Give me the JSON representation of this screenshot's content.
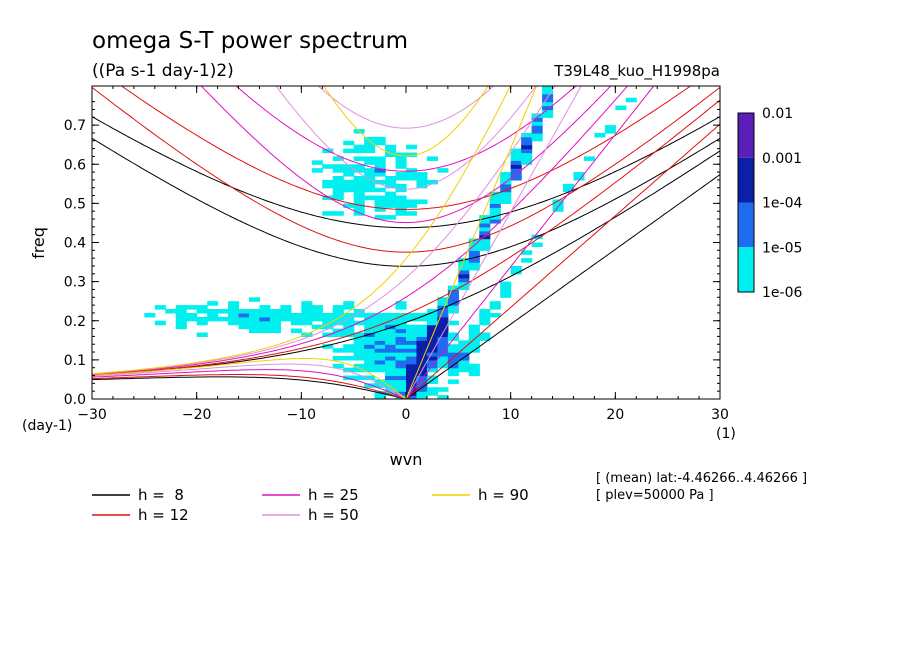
{
  "chart_data": {
    "type": "heatmap",
    "title": "omega S-T power spectrum",
    "subtitle": "((Pa s-1 day-1)2)",
    "run_label": "T39L48_kuo_H1998pa",
    "xlabel": "wvn",
    "ylabel": "freq",
    "x_unit": "(1)",
    "y_unit": "(day-1)",
    "xlim": [
      -30,
      30
    ],
    "ylim": [
      0,
      0.8
    ],
    "x_ticks": [
      -30,
      -20,
      -10,
      0,
      10,
      20,
      30
    ],
    "y_ticks": [
      0.0,
      0.1,
      0.2,
      0.3,
      0.4,
      0.5,
      0.6,
      0.7
    ],
    "colorbar": {
      "levels": [
        "0.01",
        "0.001",
        "1e-04",
        "1e-05",
        "1e-06"
      ],
      "colors": [
        "#5a1fb8",
        "#0c1fa8",
        "#1f6cf0",
        "#00f0f0"
      ]
    },
    "dispersion_curves": [
      {
        "name": "h =  8",
        "h": 8,
        "color": "#000000"
      },
      {
        "name": "h = 12",
        "h": 12,
        "color": "#e01010"
      },
      {
        "name": "h = 25",
        "h": 25,
        "color": "#e010c0"
      },
      {
        "name": "h = 50",
        "h": 50,
        "color": "#e090e0"
      },
      {
        "name": "h = 90",
        "h": 90,
        "color": "#f0d000"
      }
    ],
    "info": [
      "[ (mean) lat:-4.46266..4.46266 ]",
      "[ plev=50000 Pa ]"
    ]
  }
}
